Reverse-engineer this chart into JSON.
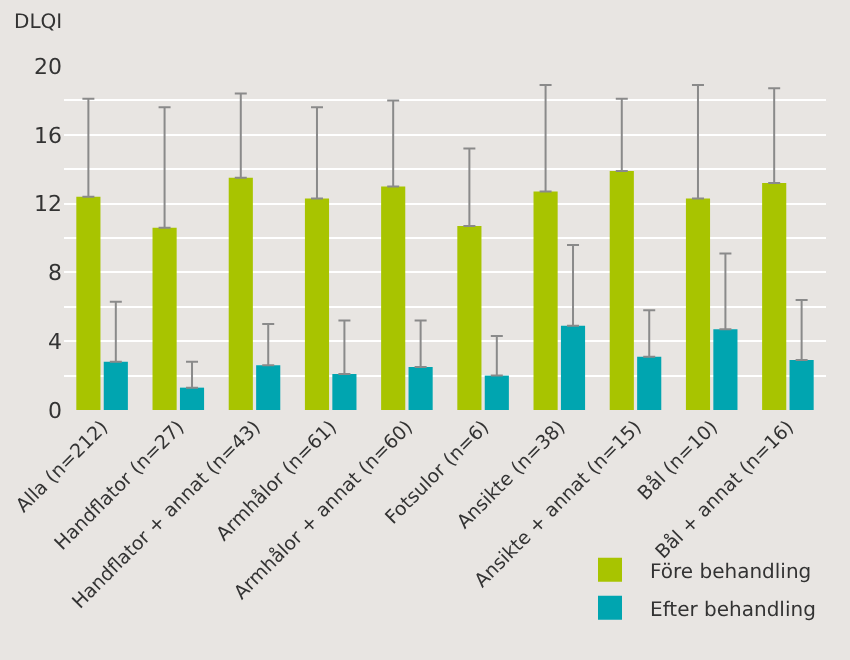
{
  "chart_data": {
    "type": "bar",
    "ylabel": "DLQI",
    "categories": [
      "Alla (n=212)",
      "Handflator (n=27)",
      "Handflator + annat (n=43)",
      "Armhålor (n=61)",
      "Armhålor + annat (n=60)",
      "Fotsulor (n=6)",
      "Ansikte (n=38)",
      "Ansikte + annat (n=15)",
      "Bål (n=10)",
      "Bål + annat (n=16)"
    ],
    "series": [
      {
        "name": "Före behandling",
        "color": "#a8c400",
        "values": [
          12.4,
          10.6,
          13.5,
          12.3,
          13.0,
          10.7,
          12.7,
          13.9,
          12.3,
          13.2
        ],
        "errors": [
          [
            12.4,
            18.1
          ],
          [
            10.6,
            17.6
          ],
          [
            13.5,
            18.4
          ],
          [
            12.3,
            17.6
          ],
          [
            13.0,
            18.0
          ],
          [
            10.7,
            15.2
          ],
          [
            12.7,
            18.9
          ],
          [
            13.9,
            18.1
          ],
          [
            12.3,
            18.9
          ],
          [
            13.2,
            18.7
          ]
        ]
      },
      {
        "name": "Efter behandling",
        "color": "#00a5b0",
        "values": [
          2.8,
          1.3,
          2.6,
          2.1,
          2.5,
          2.0,
          4.9,
          3.1,
          4.7,
          2.9
        ],
        "errors": [
          [
            2.8,
            6.3
          ],
          [
            1.3,
            2.8
          ],
          [
            2.6,
            5.0
          ],
          [
            2.1,
            5.2
          ],
          [
            2.5,
            5.2
          ],
          [
            2.0,
            4.3
          ],
          [
            4.9,
            9.6
          ],
          [
            3.1,
            5.8
          ],
          [
            4.7,
            9.1
          ],
          [
            2.9,
            6.4
          ]
        ]
      }
    ],
    "ylim": [
      0,
      20
    ],
    "yticks": [
      0,
      {
        "value": 2,
        "label": null
      },
      4,
      {
        "value": 6,
        "label": null
      },
      8,
      {
        "value": 10,
        "label": null
      },
      12,
      {
        "value": 14,
        "label": null
      },
      16,
      {
        "value": 18,
        "label": null
      },
      20
    ],
    "grid": "y",
    "legend": "bottom right"
  }
}
